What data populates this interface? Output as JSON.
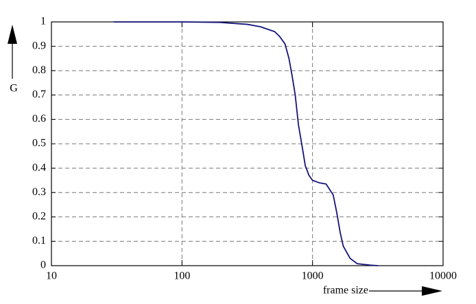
{
  "chart_data": {
    "type": "line",
    "x_label": "frame size",
    "y_label": "G",
    "x": [
      30,
      100,
      195,
      317,
      400,
      513,
      560,
      615,
      660,
      697,
      737,
      779,
      832,
      880,
      940,
      1000,
      1125,
      1270,
      1440,
      1530,
      1630,
      1720,
      1940,
      2200,
      2780,
      3170
    ],
    "series": [
      {
        "name": "G",
        "color": "#14147a",
        "values": [
          1,
          1,
          0.998,
          0.99,
          0.98,
          0.96,
          0.94,
          0.91,
          0.85,
          0.78,
          0.7,
          0.58,
          0.49,
          0.41,
          0.37,
          0.35,
          0.34,
          0.335,
          0.29,
          0.22,
          0.135,
          0.08,
          0.03,
          0.008,
          0.002,
          0
        ]
      }
    ],
    "xlim": [
      10,
      10000
    ],
    "xticks": [
      10,
      100,
      1000,
      10000
    ],
    "xlog": true,
    "ylim": [
      0,
      1
    ],
    "yticks": [
      0,
      0.1,
      0.2,
      0.3,
      0.4,
      0.5,
      0.6,
      0.7,
      0.8,
      0.9,
      1
    ],
    "grid": true
  }
}
